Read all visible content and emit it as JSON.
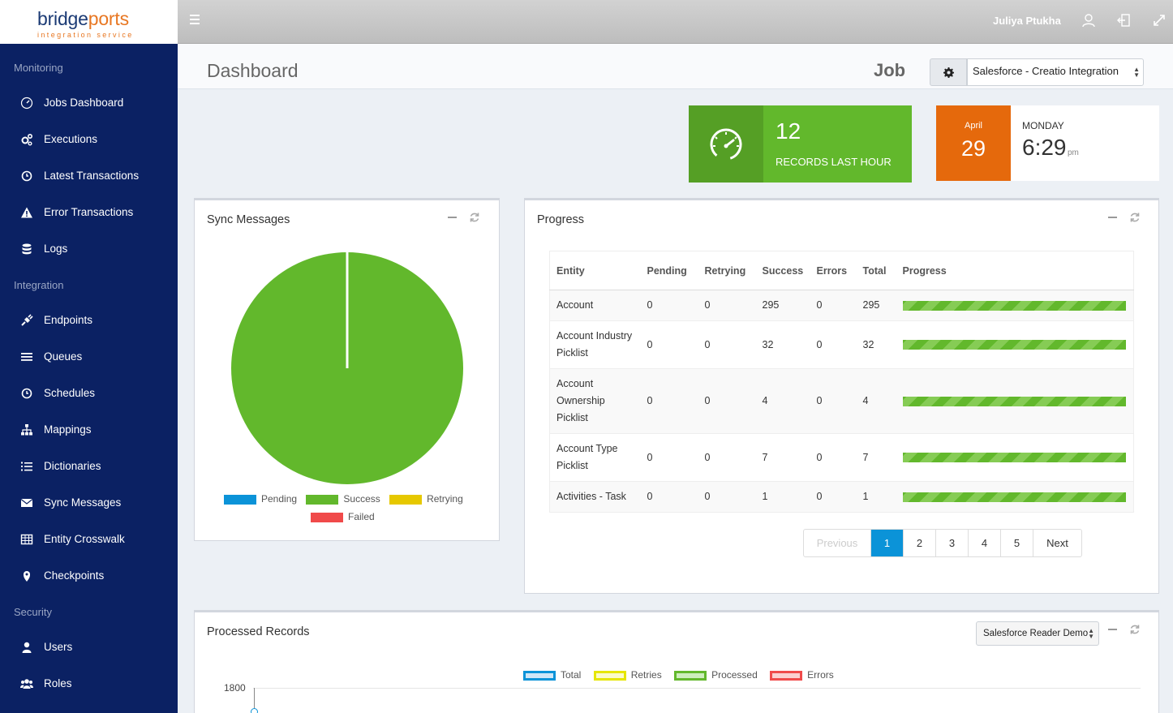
{
  "brand": {
    "name_left": "bridge",
    "name_right": "ports",
    "sub": "integration service"
  },
  "topbar": {
    "username": "Juliya Ptukha"
  },
  "sidebar": {
    "sections": [
      {
        "title": "Monitoring"
      },
      {
        "title": "Integration"
      },
      {
        "title": "Security"
      }
    ],
    "items": [
      {
        "label": "Jobs Dashboard",
        "icon": "dashboard-icon"
      },
      {
        "label": "Executions",
        "icon": "cogs-icon"
      },
      {
        "label": "Latest Transactions",
        "icon": "clock-icon"
      },
      {
        "label": "Error Transactions",
        "icon": "warning-icon"
      },
      {
        "label": "Logs",
        "icon": "database-icon"
      },
      {
        "label": "Endpoints",
        "icon": "plug-icon"
      },
      {
        "label": "Queues",
        "icon": "list-icon"
      },
      {
        "label": "Schedules",
        "icon": "clock-icon"
      },
      {
        "label": "Mappings",
        "icon": "sitemap-icon"
      },
      {
        "label": "Dictionaries",
        "icon": "list-ol-icon"
      },
      {
        "label": "Sync Messages",
        "icon": "envelope-icon"
      },
      {
        "label": "Entity Crosswalk",
        "icon": "table-icon"
      },
      {
        "label": "Checkpoints",
        "icon": "map-marker-icon"
      },
      {
        "label": "Users",
        "icon": "user-icon"
      },
      {
        "label": "Roles",
        "icon": "users-icon"
      }
    ]
  },
  "header": {
    "title": "Dashboard",
    "job_label": "Job",
    "job_select": "Salesforce - Creatio Integration"
  },
  "records": {
    "value": "12",
    "label": "RECORDS LAST HOUR"
  },
  "date": {
    "month": "April",
    "day": "29",
    "weekday": "MONDAY",
    "time": "6:29",
    "ampm": "pm"
  },
  "sync_messages": {
    "title": "Sync Messages",
    "legend": [
      {
        "label": "Pending",
        "color": "#0b93d8"
      },
      {
        "label": "Success",
        "color": "#62b82c"
      },
      {
        "label": "Retrying",
        "color": "#e6c800"
      },
      {
        "label": "Failed",
        "color": "#f04a4a"
      }
    ]
  },
  "progress": {
    "title": "Progress",
    "columns": [
      "Entity",
      "Pending",
      "Retrying",
      "Success",
      "Errors",
      "Total",
      "Progress"
    ],
    "rows": [
      {
        "entity": "Account",
        "pending": "0",
        "retrying": "0",
        "success": "295",
        "errors": "0",
        "total": "295",
        "progress": 1.0
      },
      {
        "entity": "Account Industry Picklist",
        "pending": "0",
        "retrying": "0",
        "success": "32",
        "errors": "0",
        "total": "32",
        "progress": 1.0
      },
      {
        "entity": "Account Ownership Picklist",
        "pending": "0",
        "retrying": "0",
        "success": "4",
        "errors": "0",
        "total": "4",
        "progress": 1.0
      },
      {
        "entity": "Account Type Picklist",
        "pending": "0",
        "retrying": "0",
        "success": "7",
        "errors": "0",
        "total": "7",
        "progress": 1.0
      },
      {
        "entity": "Activities - Task",
        "pending": "0",
        "retrying": "0",
        "success": "1",
        "errors": "0",
        "total": "1",
        "progress": 1.0
      }
    ],
    "pager": {
      "previous": "Previous",
      "pages": [
        "1",
        "2",
        "3",
        "4",
        "5"
      ],
      "next": "Next",
      "active": "1"
    }
  },
  "processed": {
    "title": "Processed Records",
    "select": "Salesforce Reader Demo",
    "legend": [
      {
        "label": "Total",
        "color": "#0b93d8"
      },
      {
        "label": "Retries",
        "color": "#e6e600"
      },
      {
        "label": "Processed",
        "color": "#62b82c"
      },
      {
        "label": "Errors",
        "color": "#f04a4a"
      }
    ],
    "y_tick": "1800"
  }
}
